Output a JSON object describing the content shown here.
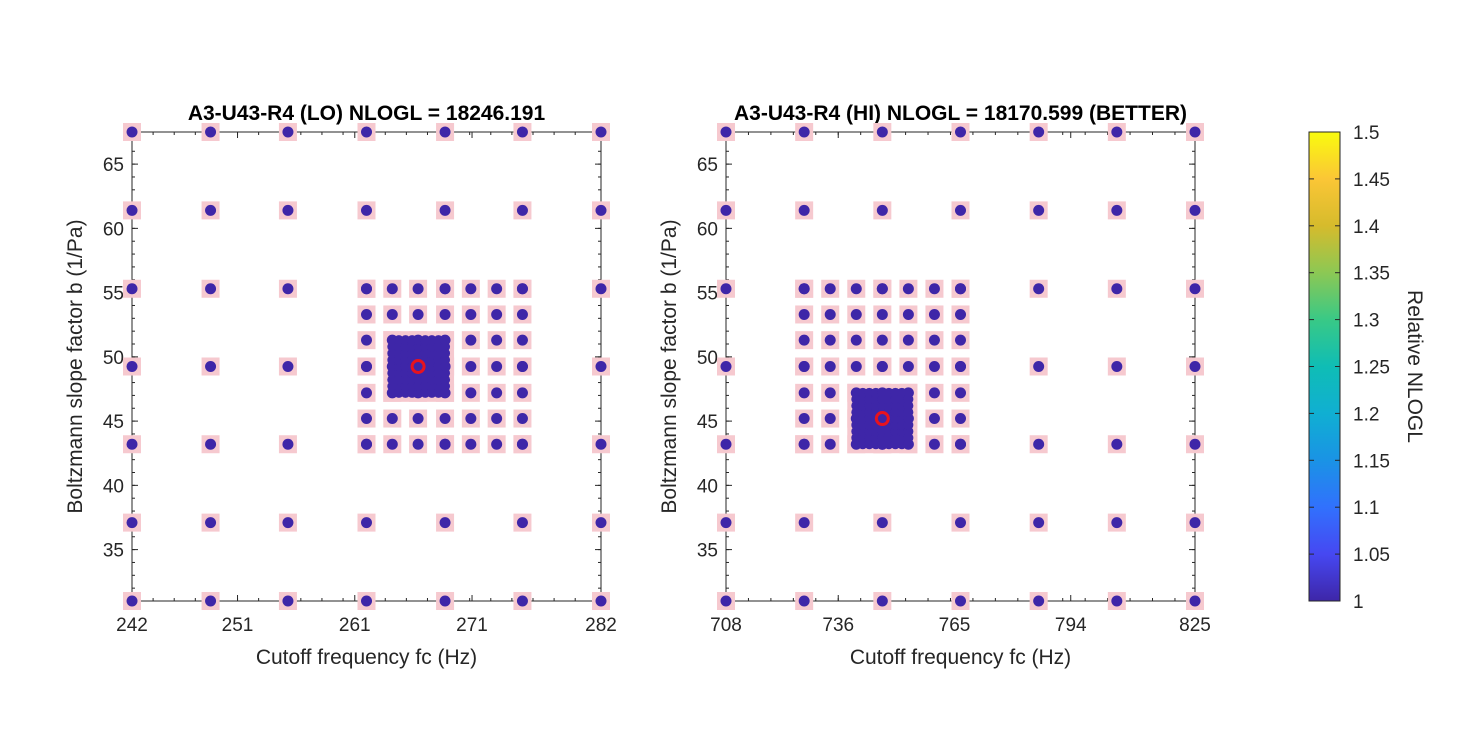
{
  "chart_data": [
    {
      "type": "scatter",
      "title": "A3-U43-R4 (LO) NLOGL = 18246.191",
      "xlabel": "Cutoff frequency fc (Hz)",
      "ylabel": "Boltzmann slope factor b (1/Pa)",
      "xlim": [
        242,
        282
      ],
      "ylim": [
        31,
        67.5
      ],
      "xticks": [
        242,
        251,
        261,
        271,
        282
      ],
      "yticks": [
        35,
        40,
        45,
        50,
        55,
        60,
        65
      ],
      "coarse_grid": {
        "x": [
          242,
          248.7,
          255.3,
          262,
          268.7,
          275.3,
          282
        ],
        "y": [
          31,
          37.1,
          43.2,
          49.25,
          55.3,
          61.4,
          67.5
        ]
      },
      "medium_grid": {
        "x": [
          262,
          264.2,
          266.4,
          268.7,
          270.9,
          273.1,
          275.3
        ],
        "y": [
          43.2,
          45.2,
          47.2,
          49.25,
          51.3,
          53.3,
          55.3
        ]
      },
      "fine_grid": {
        "x_range": [
          264.2,
          268.7
        ],
        "y_range": [
          47.2,
          51.3
        ],
        "n": 9
      },
      "best_fit": {
        "x": 266.4,
        "y": 49.25
      },
      "color_value": 1
    },
    {
      "type": "scatter",
      "title": "A3-U43-R4 (HI) NLOGL = 18170.599 (BETTER)",
      "xlabel": "Cutoff frequency fc (Hz)",
      "ylabel": "Boltzmann slope factor b (1/Pa)",
      "xlim": [
        708,
        825
      ],
      "ylim": [
        31,
        67.5
      ],
      "xticks": [
        708,
        736,
        765,
        794,
        825
      ],
      "yticks": [
        35,
        40,
        45,
        50,
        55,
        60,
        65
      ],
      "coarse_grid": {
        "x": [
          708,
          727.5,
          747,
          766.5,
          786,
          805.5,
          825
        ],
        "y": [
          31,
          37.1,
          43.2,
          49.25,
          55.3,
          61.4,
          67.5
        ]
      },
      "medium_grid": {
        "x": [
          727.5,
          734,
          740.5,
          747,
          753.5,
          760,
          766.5
        ],
        "y": [
          43.2,
          45.2,
          47.2,
          49.25,
          51.3,
          53.3,
          55.3
        ]
      },
      "fine_grid": {
        "x_range": [
          740.5,
          753.5
        ],
        "y_range": [
          43.2,
          47.2
        ],
        "n": 9
      },
      "best_fit": {
        "x": 747,
        "y": 45.2
      },
      "color_value": 1
    }
  ],
  "colorbar": {
    "label": "Relative NLOGL",
    "min": 1,
    "max": 1.5,
    "ticks": [
      1,
      1.05,
      1.1,
      1.15,
      1.2,
      1.25,
      1.3,
      1.35,
      1.4,
      1.45,
      1.5
    ],
    "colormap": "parula"
  },
  "colors": {
    "marker": "#3e26a8",
    "marker_bg": "#f6c9cf",
    "best_fit": "#e8131e",
    "axis": "#262626"
  }
}
